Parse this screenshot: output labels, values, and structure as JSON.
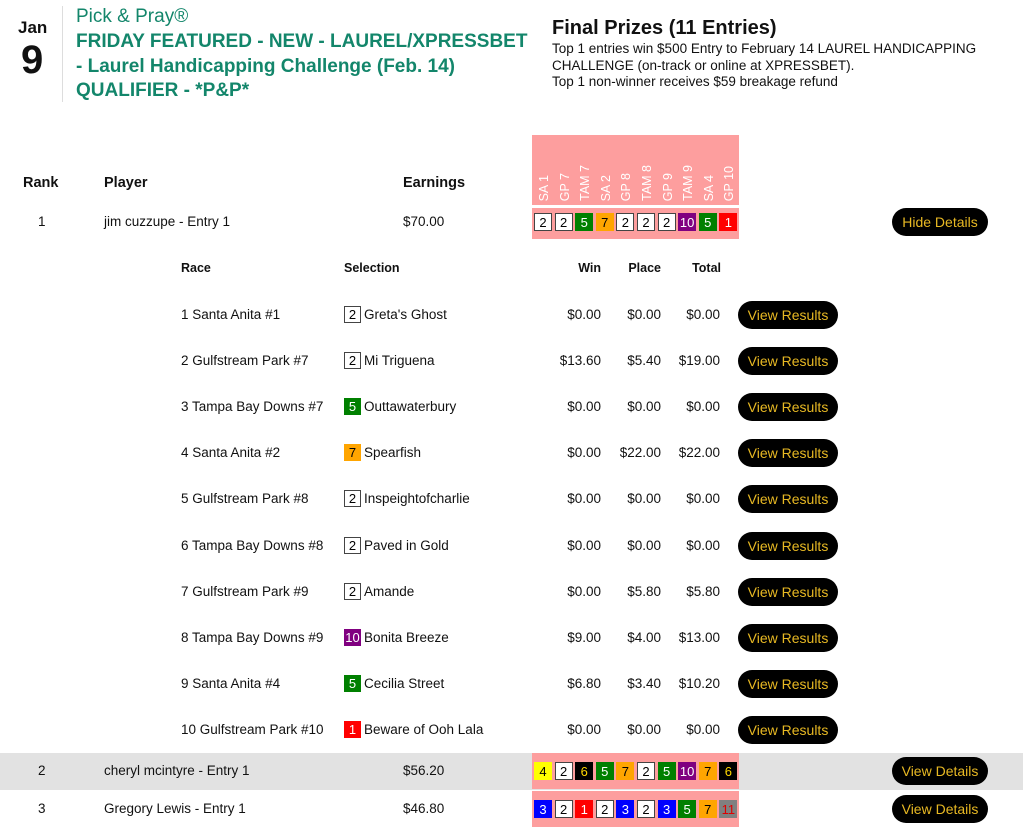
{
  "header": {
    "month": "Jan",
    "day": "9",
    "game": "Pick & Pray®",
    "title": "FRIDAY FEATURED - NEW - LAUREL/XPRESSBET - Laurel Handicapping Challenge (Feb. 14) QUALIFIER - *P&P*"
  },
  "prizes": {
    "title": "Final Prizes (11 Entries)",
    "line1": "Top 1 entries win $500 Entry to February 14 LAUREL HANDICAPPING CHALLENGE (on-track or online at XPRESSBET).",
    "line2": "Top 1 non-winner receives $59 breakage refund"
  },
  "table": {
    "rank": "Rank",
    "player": "Player",
    "earnings": "Earnings",
    "races": [
      "SA 1",
      "GP 7",
      "TAM 7",
      "SA 2",
      "GP 8",
      "TAM 8",
      "GP 9",
      "TAM 9",
      "SA 4",
      "GP 10"
    ]
  },
  "colors": {
    "1": [
      "#ff0000",
      "#fff"
    ],
    "2": [
      "#fff",
      "#000"
    ],
    "3": [
      "#0000ff",
      "#fff"
    ],
    "4": [
      "#ffff00",
      "#000"
    ],
    "5": [
      "#008000",
      "#fff"
    ],
    "6": [
      "#000",
      "#ffd700"
    ],
    "7": [
      "#ffa500",
      "#000"
    ],
    "10": [
      "#800080",
      "#fff"
    ],
    "11": [
      "#808080",
      "#e00000"
    ]
  },
  "entries": [
    {
      "rank": "1",
      "player": "jim cuzzupe - Entry 1",
      "earnings": "$70.00",
      "picks": [
        "2",
        "2",
        "5",
        "7",
        "2",
        "2",
        "2",
        "10",
        "5",
        "1"
      ],
      "button": "Hide Details"
    },
    {
      "rank": "2",
      "player": "cheryl mcintyre - Entry 1",
      "earnings": "$56.20",
      "picks": [
        "4",
        "2",
        "6",
        "5",
        "7",
        "2",
        "5",
        "10",
        "7",
        "6"
      ],
      "button": "View Details"
    },
    {
      "rank": "3",
      "player": "Gregory Lewis - Entry 1",
      "earnings": "$46.80",
      "picks": [
        "3",
        "2",
        "1",
        "2",
        "3",
        "2",
        "3",
        "5",
        "7",
        "11"
      ],
      "button": "View Details"
    }
  ],
  "details": {
    "headers": {
      "race": "Race",
      "selection": "Selection",
      "win": "Win",
      "place": "Place",
      "total": "Total"
    },
    "button": "View Results",
    "rows": [
      {
        "race": "1 Santa Anita #1",
        "num": "2",
        "horse": "Greta's Ghost",
        "win": "$0.00",
        "place": "$0.00",
        "total": "$0.00"
      },
      {
        "race": "2 Gulfstream Park #7",
        "num": "2",
        "horse": "Mi Triguena",
        "win": "$13.60",
        "place": "$5.40",
        "total": "$19.00"
      },
      {
        "race": "3 Tampa Bay Downs #7",
        "num": "5",
        "horse": "Outtawaterbury",
        "win": "$0.00",
        "place": "$0.00",
        "total": "$0.00"
      },
      {
        "race": "4 Santa Anita #2",
        "num": "7",
        "horse": "Spearfish",
        "win": "$0.00",
        "place": "$22.00",
        "total": "$22.00"
      },
      {
        "race": "5 Gulfstream Park #8",
        "num": "2",
        "horse": "Inspeightofcharlie",
        "win": "$0.00",
        "place": "$0.00",
        "total": "$0.00"
      },
      {
        "race": "6 Tampa Bay Downs #8",
        "num": "2",
        "horse": "Paved in Gold",
        "win": "$0.00",
        "place": "$0.00",
        "total": "$0.00"
      },
      {
        "race": "7 Gulfstream Park #9",
        "num": "2",
        "horse": "Amande",
        "win": "$0.00",
        "place": "$5.80",
        "total": "$5.80"
      },
      {
        "race": "8 Tampa Bay Downs #9",
        "num": "10",
        "horse": "Bonita Breeze",
        "win": "$9.00",
        "place": "$4.00",
        "total": "$13.00"
      },
      {
        "race": "9 Santa Anita #4",
        "num": "5",
        "horse": "Cecilia Street",
        "win": "$6.80",
        "place": "$3.40",
        "total": "$10.20"
      },
      {
        "race": "10 Gulfstream Park #10",
        "num": "1",
        "horse": "Beware of Ooh Lala",
        "win": "$0.00",
        "place": "$0.00",
        "total": "$0.00"
      }
    ]
  }
}
